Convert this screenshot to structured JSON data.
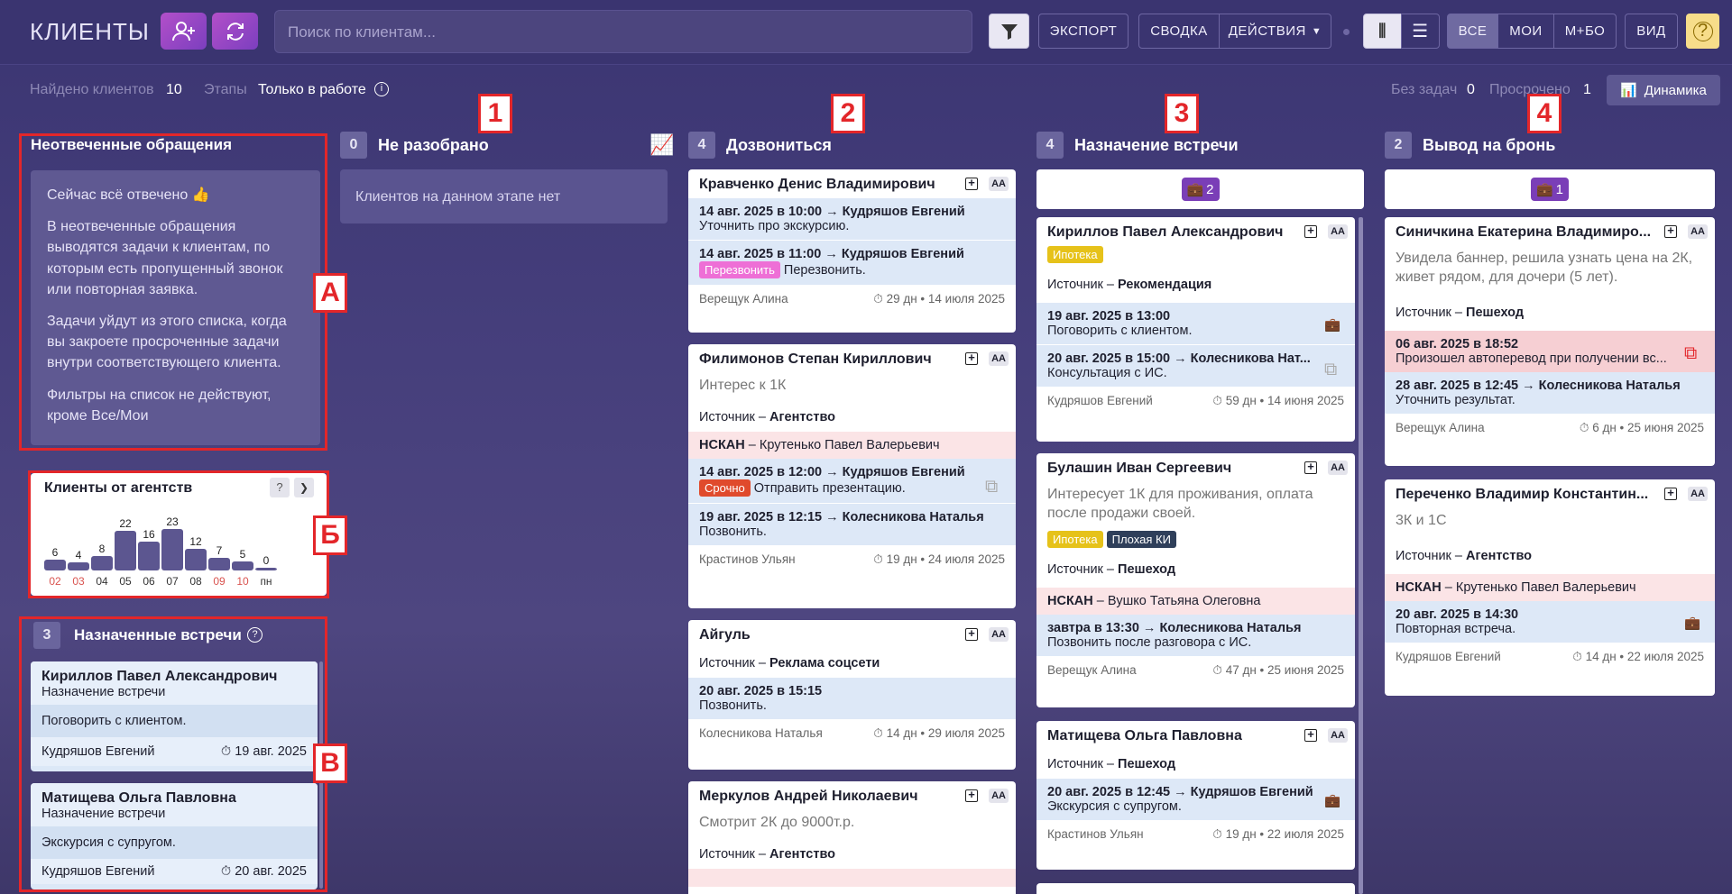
{
  "app": {
    "title": "КЛИЕНТЫ",
    "search_placeholder": "Поиск по клиентам...",
    "buttons": {
      "export": "ЭКСПОРТ",
      "summary": "СВОДКА",
      "actions": "ДЕЙСТВИЯ",
      "all": "ВСЕ",
      "mine": "МОИ",
      "mbo": "М+БО",
      "view": "ВИД"
    }
  },
  "sub": {
    "found_label": "Найдено клиентов",
    "found": "10",
    "stages_label": "Этапы",
    "stages_value": "Только в работе",
    "no_tasks_label": "Без задач",
    "no_tasks": "0",
    "overdue_label": "Просрочено",
    "overdue": "1",
    "dynamics": "Динамика"
  },
  "labels": {
    "n1": "1",
    "n2": "2",
    "n3": "3",
    "n4": "4",
    "a": "А",
    "b": "Б",
    "v": "В"
  },
  "unanswered": {
    "title": "Неотвеченные обращения",
    "p1": "Сейчас всё отвечено 👍",
    "p2": "В неотвеченные обращения выводятся задачи к клиентам, по которым есть пропущенный звонок или повторная заявка.",
    "p3": "Задачи уйдут из этого списка, когда вы закроете просроченные задачи внутри соответствующего клиента.",
    "p4": "Фильтры на список не действуют, кроме Все/Мои"
  },
  "agents": {
    "title": "Клиенты от агентств",
    "help": "?"
  },
  "chart_data": {
    "type": "bar",
    "title": "Клиенты от агентств",
    "categories": [
      "02",
      "03",
      "04",
      "05",
      "06",
      "07",
      "08",
      "09",
      "10",
      "пн"
    ],
    "values": [
      6,
      4,
      8,
      22,
      16,
      23,
      12,
      7,
      5,
      0
    ],
    "weekend_categories": [
      "02",
      "03",
      "09",
      "10"
    ]
  },
  "meetings": {
    "count": "3",
    "title": "Назначенные встречи",
    "items": [
      {
        "name": "Кириллов Павел Александрович",
        "stage": "Назначение встречи",
        "task": "Поговорить с клиентом.",
        "agent": "Кудряшов Евгений",
        "date": "19 авг. 2025"
      },
      {
        "name": "Матищева Ольга Павловна",
        "stage": "Назначение встречи",
        "task": "Экскурсия с супругом.",
        "agent": "Кудряшов Евгений",
        "date": "20 авг. 2025"
      }
    ]
  },
  "col1": {
    "count": "0",
    "title": "Не разобрано",
    "empty": "Клиентов на данном этапе нет"
  },
  "col2": {
    "count": "4",
    "title": "Дозвониться",
    "c1": {
      "name": "Кравченко Денис Владимирович",
      "t1h": "14 авг. 2025 в 10:00 → Кудряшов Евгений",
      "t1": "Уточнить про экскурсию.",
      "t2h": "14 авг. 2025 в 11:00 → Кудряшов Евгений",
      "t2tag": "Перезвонить",
      "t2": "Перезвонить.",
      "agent": "Верещук Алина",
      "meta": "29 дн • 14 июля 2025"
    },
    "c2": {
      "name": "Филимонов Степан Кириллович",
      "note": "Интерес к 1К",
      "src_label": "Источник –",
      "src": "Агентство",
      "nscan_label": "НСКАН",
      "nscan": "– Крутенько Павел Валерьевич",
      "t1h": "14 авг. 2025 в 12:00 → Кудряшов Евгений",
      "t1tag": "Срочно",
      "t1": "Отправить презентацию.",
      "t2h": "19 авг. 2025 в 12:15 → Колесникова Наталья",
      "t2": "Позвонить.",
      "agent": "Крастинов Ульян",
      "meta": "19 дн • 24 июля 2025"
    },
    "c3": {
      "name": "Айгуль",
      "src_label": "Источник –",
      "src": "Реклама соцсети",
      "t1h": "20 авг. 2025 в 15:15",
      "t1": "Позвонить.",
      "agent": "Колесникова Наталья",
      "meta": "14 дн • 29 июля 2025"
    },
    "c4": {
      "name": "Меркулов Андрей Николаевич",
      "note": "Смотрит 2К до 9000т.р.",
      "src_label": "Источник –",
      "src": "Агентство"
    }
  },
  "col3": {
    "count": "4",
    "title": "Назначение встречи",
    "bag": "2",
    "c1": {
      "name": "Кириллов Павел Александрович",
      "tag": "Ипотека",
      "src_label": "Источник –",
      "src": "Рекомендация",
      "t1h": "19 авг. 2025 в 13:00",
      "t1": "Поговорить с клиентом.",
      "t2h": "20 авг. 2025 в 15:00 → Колесникова Нат...",
      "t2": "Консультация с ИС.",
      "agent": "Кудряшов Евгений",
      "meta": "59 дн • 14 июня 2025"
    },
    "c2": {
      "name": "Булашин Иван Сергеевич",
      "note": "Интересует 1К для проживания, оплата после продажи своей.",
      "tag1": "Ипотека",
      "tag2": "Плохая КИ",
      "src_label": "Источник –",
      "src": "Пешеход",
      "nscan_label": "НСКАН",
      "nscan": "– Вушко Татьяна Олеговна",
      "t1h": "завтра в 13:30 → Колесникова Наталья",
      "t1": "Позвонить после разговора с ИС.",
      "agent": "Верещук Алина",
      "meta": "47 дн • 25 июня 2025"
    },
    "c3": {
      "name": "Матищева Ольга Павловна",
      "src_label": "Источник –",
      "src": "Пешеход",
      "t1h": "20 авг. 2025 в 12:45 → Кудряшов Евгений",
      "t1": "Экскурсия с супругом.",
      "agent": "Крастинов Ульян",
      "meta": "19 дн • 22 июля 2025"
    }
  },
  "col4": {
    "count": "2",
    "title": "Вывод на бронь",
    "bag": "1",
    "c1": {
      "name": "Синичкина Екатерина Владимиро...",
      "note": "Увидела баннер, решила узнать цена на 2К, живет рядом, для дочери (5 лет).",
      "src_label": "Источник –",
      "src": "Пешеход",
      "t1h": "06 авг. 2025 в 18:52",
      "t1": "Произошел автоперевод при получении вс...",
      "t2h": "28 авг. 2025 в 12:45 → Колесникова Наталья",
      "t2": "Уточнить результат.",
      "agent": "Верещук Алина",
      "meta": "6 дн • 25 июня 2025"
    },
    "c2": {
      "name": "Переченко Владимир Константин...",
      "note": "3К и 1С",
      "src_label": "Источник –",
      "src": "Агентство",
      "nscan_label": "НСКАН",
      "nscan": "– Крутенько Павел Валерьевич",
      "t1h": "20 авг. 2025 в 14:30",
      "t1": "Повторная встреча.",
      "agent": "Кудряшов Евгений",
      "meta": "14 дн • 22 июля 2025"
    }
  },
  "colors": {
    "accent": "#7a3eb7",
    "task_bg": "#dde8f7",
    "nscan_bg": "#fbe4e6",
    "late_bg": "#f6cfd3",
    "label_red": "#e3262a"
  }
}
